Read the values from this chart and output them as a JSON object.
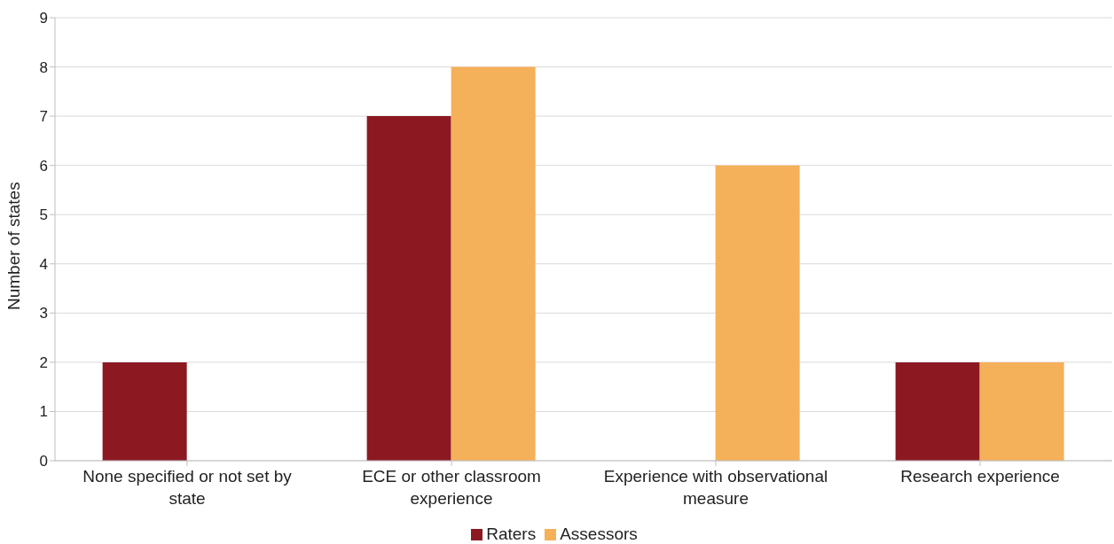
{
  "chart_data": {
    "type": "bar",
    "ylabel": "Number of states",
    "categories": [
      "None specified or not set by state",
      "ECE or other classroom experience",
      "Experience with observational measure",
      "Research experience"
    ],
    "series": [
      {
        "name": "Raters",
        "color": "#8c1922",
        "values": [
          2,
          7,
          0,
          2
        ]
      },
      {
        "name": "Assessors",
        "color": "#f5b05a",
        "values": [
          0,
          8,
          6,
          2
        ]
      }
    ],
    "ylim": [
      0,
      9
    ],
    "yticks": [
      0,
      1,
      2,
      3,
      4,
      5,
      6,
      7,
      8,
      9
    ],
    "grid": "y",
    "legend": "bottom"
  }
}
